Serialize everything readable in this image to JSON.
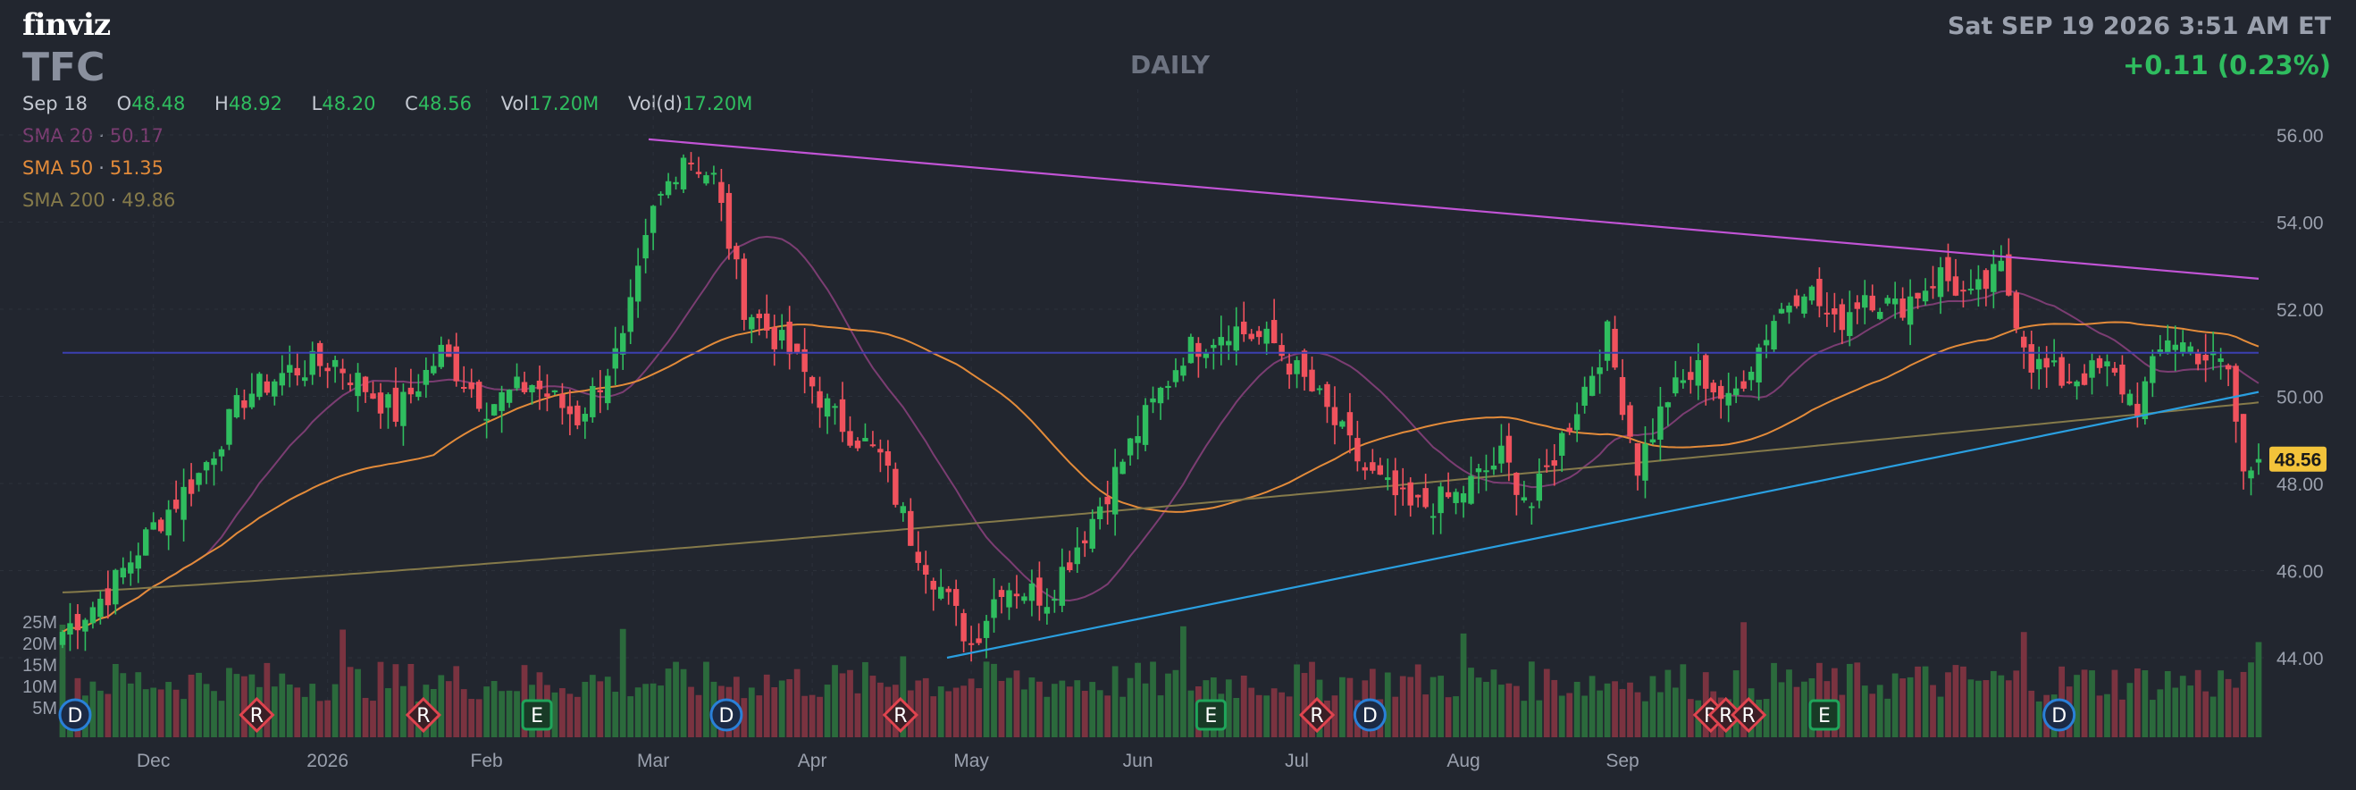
{
  "header": {
    "logo": "finviz",
    "ticker": "TFC",
    "timeframe": "DAILY",
    "datetime": "Sat SEP 19 2026 3:51 AM ET",
    "change": "+0.11 (0.23%)"
  },
  "ohlc": {
    "date": "Sep 18",
    "open_label": "O",
    "open": "48.48",
    "high_label": "H",
    "high": "48.92",
    "low_label": "L",
    "low": "48.20",
    "close_label": "C",
    "close": "48.56",
    "vol_label": "Vol",
    "vol": "17.20M",
    "vold_label": "Vol(d)",
    "vold": "17.20M"
  },
  "indicators": {
    "sma20": {
      "label": "SMA 20",
      "value": "50.17",
      "color": "#7b3d72"
    },
    "sma50": {
      "label": "SMA 50",
      "value": "51.35",
      "color": "#e38b3a"
    },
    "sma200": {
      "label": "SMA 200",
      "value": "49.86",
      "color": "#857a4a"
    }
  },
  "colors": {
    "up": "#2fbd5f",
    "down": "#f0525d",
    "trend_top": "#c254d6",
    "trend_bottom": "#2a9fe0",
    "hline": "#3b3fb0",
    "price_tag": "#f3c33a"
  },
  "chart_data": {
    "type": "candlestick",
    "price_axis": {
      "range": [
        43.0,
        56.5
      ],
      "ticks": [
        "56.00",
        "54.00",
        "52.00",
        "50.00",
        "48.00",
        "46.00",
        "44.00"
      ]
    },
    "volume_axis": {
      "ticks": [
        "25M",
        "20M",
        "15M",
        "10M",
        "5M"
      ]
    },
    "x_ticks": [
      "Dec",
      "2026",
      "Feb",
      "Mar",
      "Apr",
      "May",
      "Jun",
      "Jul",
      "Aug",
      "Sep"
    ],
    "last_price": "48.56",
    "horizontal_line": 51.0,
    "trendlines": [
      {
        "name": "resistance",
        "from": [
          "2026-02-05",
          55.9
        ],
        "to": [
          "2026-09-18",
          52.7
        ]
      },
      {
        "name": "support",
        "from": [
          "2026-03-20",
          44.0
        ],
        "to": [
          "2026-09-18",
          50.1
        ]
      }
    ],
    "events": [
      {
        "type": "D",
        "x": 0
      },
      {
        "type": "R",
        "x": 24
      },
      {
        "type": "R",
        "x": 46
      },
      {
        "type": "E",
        "x": 61
      },
      {
        "type": "D",
        "x": 86
      },
      {
        "type": "R",
        "x": 109
      },
      {
        "type": "E",
        "x": 150
      },
      {
        "type": "R",
        "x": 164
      },
      {
        "type": "D",
        "x": 171
      },
      {
        "type": "R",
        "x": 216
      },
      {
        "type": "R",
        "x": 218
      },
      {
        "type": "R",
        "x": 221
      },
      {
        "type": "E",
        "x": 231
      },
      {
        "type": "D",
        "x": 262
      }
    ],
    "close_anchors": [
      [
        0,
        44.6
      ],
      [
        6,
        45.5
      ],
      [
        12,
        47.0
      ],
      [
        18,
        48.2
      ],
      [
        24,
        50.0
      ],
      [
        30,
        50.6
      ],
      [
        36,
        50.8
      ],
      [
        44,
        49.6
      ],
      [
        50,
        51.0
      ],
      [
        56,
        49.8
      ],
      [
        62,
        50.3
      ],
      [
        68,
        49.5
      ],
      [
        74,
        51.2
      ],
      [
        78,
        54.2
      ],
      [
        82,
        55.6
      ],
      [
        86,
        55.0
      ],
      [
        90,
        52.1
      ],
      [
        96,
        51.0
      ],
      [
        102,
        49.5
      ],
      [
        108,
        48.6
      ],
      [
        112,
        46.8
      ],
      [
        116,
        45.6
      ],
      [
        120,
        44.3
      ],
      [
        124,
        45.7
      ],
      [
        130,
        45.4
      ],
      [
        136,
        47.2
      ],
      [
        142,
        49.2
      ],
      [
        148,
        51.0
      ],
      [
        154,
        51.6
      ],
      [
        160,
        51.2
      ],
      [
        166,
        49.9
      ],
      [
        172,
        48.3
      ],
      [
        178,
        47.4
      ],
      [
        184,
        47.7
      ],
      [
        190,
        48.6
      ],
      [
        194,
        47.5
      ],
      [
        200,
        49.8
      ],
      [
        204,
        51.4
      ],
      [
        208,
        48.4
      ],
      [
        212,
        50.0
      ],
      [
        216,
        50.6
      ],
      [
        220,
        49.8
      ],
      [
        226,
        51.8
      ],
      [
        230,
        52.6
      ],
      [
        234,
        51.6
      ],
      [
        238,
        52.4
      ],
      [
        242,
        52.0
      ],
      [
        248,
        52.8
      ],
      [
        252,
        52.2
      ],
      [
        256,
        52.9
      ],
      [
        260,
        50.8
      ],
      [
        264,
        50.4
      ],
      [
        270,
        50.6
      ],
      [
        274,
        49.8
      ],
      [
        278,
        51.4
      ],
      [
        282,
        51.0
      ],
      [
        286,
        50.6
      ],
      [
        288,
        48.2
      ],
      [
        290,
        48.56
      ]
    ]
  }
}
